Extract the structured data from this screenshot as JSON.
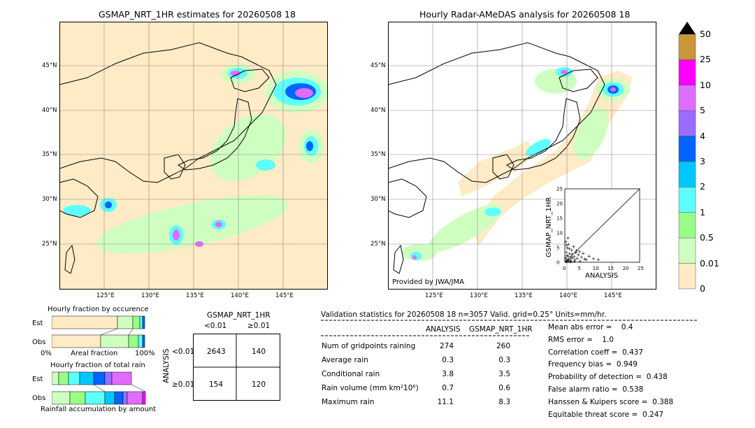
{
  "maps": {
    "left_title": "GSMAP_NRT_1HR estimates for 20260508 18",
    "right_title": "Hourly Radar-AMeDAS analysis for 20260508 18",
    "provided_by": "Provided by JWA/JMA",
    "lat_labels": [
      "45°N",
      "40°N",
      "35°N",
      "30°N",
      "25°N"
    ],
    "lon_labels": [
      "125°E",
      "130°E",
      "135°E",
      "140°E",
      "145°E"
    ]
  },
  "colorbar": {
    "labels": [
      "50",
      "25",
      "10",
      "5",
      "4",
      "3",
      "2",
      "1",
      "0.5",
      "0.01",
      "0"
    ],
    "colors": [
      "#ffebc6",
      "#cfffc0",
      "#97ff88",
      "#5effff",
      "#00c8ff",
      "#0064ff",
      "#9a6dff",
      "#e06cff",
      "#ff00ff",
      "#c99638"
    ]
  },
  "scatter": {
    "xlabel": "ANALYSIS",
    "ylabel": "GSMAP_NRT_1HR",
    "ticks": [
      "0",
      "5",
      "10",
      "15",
      "20",
      "25"
    ]
  },
  "fraction": {
    "occurrence_title": "Hourly fraction by occurence",
    "total_title": "Hourly fraction of total rain",
    "est_label": "Est",
    "obs_label": "Obs",
    "axis_left": "0%",
    "axis_mid": "Areal fraction",
    "axis_right": "100%",
    "accum_label": "Rainfall accumulation by amount"
  },
  "contingency": {
    "header": "GSMAP_NRT_1HR",
    "col1": "<0.01",
    "col2": "≥0.01",
    "row_axis": "ANALYSIS",
    "row1": "<0.01",
    "row2": "≥0.01",
    "cells": [
      "2643",
      "140",
      "154",
      "120"
    ]
  },
  "validation": {
    "header": "Validation statistics for 20260508 18  n=3057 Valid. grid=0.25° Units=mm/hr.",
    "col_analysis": "ANALYSIS",
    "col_gsmap": "GSMAP_NRT_1HR",
    "rows": [
      {
        "label": "Num of gridpoints raining",
        "analysis": "274",
        "gsmap": "260"
      },
      {
        "label": "Average rain",
        "analysis": "0.3",
        "gsmap": "0.3"
      },
      {
        "label": "Conditional rain",
        "analysis": "3.8",
        "gsmap": "3.5"
      },
      {
        "label": "Rain volume (mm km²10⁶)",
        "analysis": "0.7",
        "gsmap": "0.6"
      },
      {
        "label": "Maximum rain",
        "analysis": "11.1",
        "gsmap": "8.3"
      }
    ],
    "scores": [
      "Mean abs error =    0.4",
      "RMS error =    1.0",
      "Correlation coeff =  0.437",
      "Frequency bias =  0.949",
      "Probability of detection =  0.438",
      "False alarm ratio =  0.538",
      "Hanssen & Kuipers score =  0.388",
      "Equitable threat score =  0.247"
    ]
  },
  "chart_data": {
    "type": "scatter",
    "xlabel": "ANALYSIS",
    "ylabel": "GSMAP_NRT_1HR",
    "xlim": [
      0,
      25
    ],
    "ylim": [
      0,
      25
    ],
    "points": [
      [
        0.3,
        0.2
      ],
      [
        0.5,
        1.0
      ],
      [
        0.8,
        0.4
      ],
      [
        1.0,
        2.1
      ],
      [
        1.2,
        0.6
      ],
      [
        1.5,
        3.0
      ],
      [
        1.8,
        1.1
      ],
      [
        2.0,
        0.3
      ],
      [
        2.2,
        4.2
      ],
      [
        2.5,
        1.6
      ],
      [
        0.4,
        3.5
      ],
      [
        0.7,
        5.0
      ],
      [
        1.1,
        6.2
      ],
      [
        0.2,
        7.0
      ],
      [
        3.0,
        2.0
      ],
      [
        3.3,
        0.8
      ],
      [
        3.6,
        3.3
      ],
      [
        4.0,
        1.4
      ],
      [
        4.4,
        2.6
      ],
      [
        5.0,
        0.5
      ],
      [
        5.5,
        1.8
      ],
      [
        6.0,
        3.1
      ],
      [
        7.0,
        0.9
      ],
      [
        8.0,
        2.2
      ],
      [
        9.5,
        1.3
      ],
      [
        11.1,
        1.0
      ],
      [
        0.6,
        2.4
      ],
      [
        1.4,
        4.6
      ],
      [
        2.8,
        5.4
      ],
      [
        0.9,
        8.3
      ],
      [
        1.7,
        0.2
      ],
      [
        2.3,
        2.9
      ],
      [
        3.8,
        4.0
      ],
      [
        0.15,
        1.5
      ],
      [
        0.5,
        6.0
      ],
      [
        6.5,
        1.2
      ],
      [
        4.8,
        3.7
      ],
      [
        2.0,
        1.9
      ],
      [
        1.0,
        1.0
      ],
      [
        3.1,
        0.3
      ]
    ]
  }
}
